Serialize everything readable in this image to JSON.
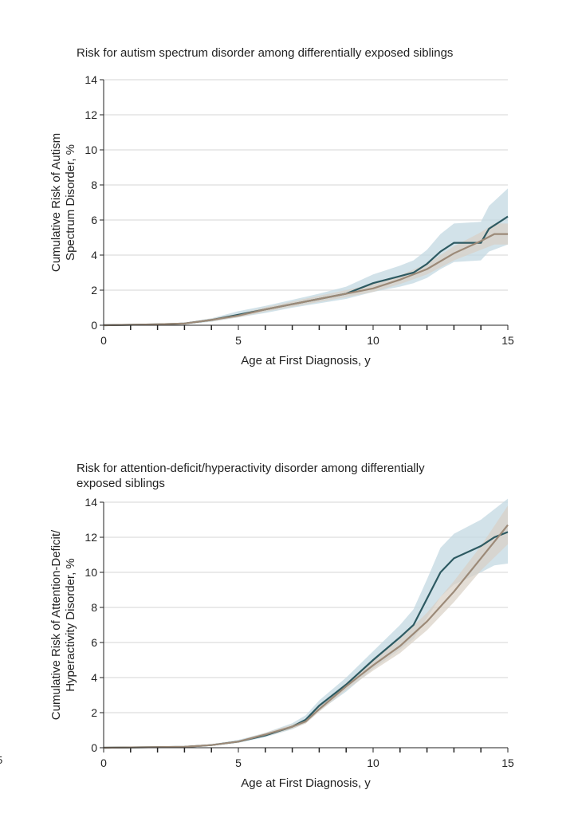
{
  "colors": {
    "exposed_line": "#2d5a62",
    "unexposed_line": "#9c8a78",
    "exposed_band": "#c3d8e2",
    "unexposed_band": "#d8d0c5",
    "grid": "#e3e3e3"
  },
  "stray_label": "5",
  "chart_data": [
    {
      "type": "line",
      "title": "Risk for autism spectrum disorder among differentially exposed siblings",
      "xlabel": "Age at First Diagnosis, y",
      "ylabel": [
        "Cumulative Risk of Autism",
        "Spectrum Disorder, %"
      ],
      "xlim": [
        0,
        15
      ],
      "ylim": [
        0,
        14
      ],
      "xticks": [
        0,
        5,
        10,
        15
      ],
      "yticks": [
        0,
        2,
        4,
        6,
        8,
        10,
        12,
        14
      ],
      "grid": true,
      "series": [
        {
          "x": [
            0,
            2,
            3,
            4,
            5,
            6,
            7,
            8,
            9,
            10,
            11,
            11.5,
            12,
            12.5,
            13,
            14,
            14.3,
            15
          ],
          "y": [
            0,
            0.05,
            0.1,
            0.3,
            0.6,
            0.9,
            1.2,
            1.5,
            1.8,
            2.4,
            2.8,
            3.0,
            3.5,
            4.2,
            4.7,
            4.7,
            5.5,
            6.2
          ],
          "lower": [
            0,
            0.02,
            0.05,
            0.2,
            0.45,
            0.7,
            1.0,
            1.25,
            1.5,
            1.9,
            2.2,
            2.4,
            2.7,
            3.2,
            3.6,
            3.7,
            4.2,
            4.6
          ],
          "upper": [
            0,
            0.08,
            0.15,
            0.4,
            0.8,
            1.1,
            1.45,
            1.8,
            2.2,
            2.9,
            3.4,
            3.7,
            4.3,
            5.2,
            5.8,
            5.9,
            6.8,
            7.8
          ]
        },
        {
          "x": [
            0,
            2,
            3,
            4,
            5,
            6,
            7,
            8,
            9,
            10,
            11,
            12,
            13,
            14,
            14.5,
            15
          ],
          "y": [
            0,
            0.05,
            0.1,
            0.3,
            0.55,
            0.9,
            1.2,
            1.5,
            1.8,
            2.1,
            2.6,
            3.2,
            4.1,
            4.8,
            5.2,
            5.2
          ],
          "lower": [
            0,
            0.03,
            0.07,
            0.22,
            0.45,
            0.78,
            1.05,
            1.33,
            1.6,
            1.9,
            2.35,
            2.9,
            3.7,
            4.3,
            4.6,
            4.6
          ],
          "upper": [
            0,
            0.07,
            0.13,
            0.38,
            0.65,
            1.02,
            1.35,
            1.68,
            2.0,
            2.35,
            2.85,
            3.5,
            4.5,
            5.3,
            5.8,
            5.8
          ]
        }
      ]
    },
    {
      "type": "line",
      "title": "Risk for attention-deficit/hyperactivity disorder among differentially exposed siblings",
      "xlabel": "Age at First Diagnosis, y",
      "ylabel": [
        "Cumulative Risk of Attention-Deficit/",
        "Hyperactivity Disorder, %"
      ],
      "xlim": [
        0,
        15
      ],
      "ylim": [
        0,
        14
      ],
      "xticks": [
        0,
        5,
        10,
        15
      ],
      "yticks": [
        0,
        2,
        4,
        6,
        8,
        10,
        12,
        14
      ],
      "grid": true,
      "series": [
        {
          "x": [
            0,
            3,
            4,
            5,
            6,
            7,
            7.5,
            8,
            9,
            10,
            11,
            11.5,
            12,
            12.5,
            13,
            14,
            14.5,
            15
          ],
          "y": [
            0,
            0.05,
            0.15,
            0.35,
            0.7,
            1.2,
            1.6,
            2.4,
            3.6,
            5.0,
            6.3,
            7.0,
            8.5,
            10.0,
            10.8,
            11.5,
            12.0,
            12.3
          ],
          "lower": [
            0,
            0.03,
            0.1,
            0.28,
            0.6,
            1.05,
            1.4,
            2.1,
            3.2,
            4.5,
            5.6,
            6.2,
            7.4,
            8.6,
            9.3,
            10.0,
            10.4,
            10.5
          ],
          "upper": [
            0,
            0.07,
            0.2,
            0.45,
            0.85,
            1.4,
            1.85,
            2.7,
            4.0,
            5.5,
            7.0,
            7.9,
            9.6,
            11.4,
            12.2,
            13.0,
            13.6,
            14.2
          ]
        },
        {
          "x": [
            0,
            3,
            4,
            5,
            6,
            7,
            7.5,
            8,
            9,
            10,
            11,
            12,
            13,
            14,
            15
          ],
          "y": [
            0,
            0.05,
            0.15,
            0.35,
            0.75,
            1.2,
            1.5,
            2.2,
            3.5,
            4.7,
            5.8,
            7.2,
            8.9,
            10.8,
            12.7
          ],
          "lower": [
            0,
            0.03,
            0.12,
            0.3,
            0.65,
            1.08,
            1.38,
            2.05,
            3.3,
            4.4,
            5.4,
            6.7,
            8.3,
            10.1,
            11.6
          ],
          "upper": [
            0,
            0.07,
            0.18,
            0.4,
            0.85,
            1.32,
            1.62,
            2.35,
            3.7,
            5.0,
            6.2,
            7.7,
            9.5,
            11.5,
            13.8
          ]
        }
      ]
    }
  ]
}
